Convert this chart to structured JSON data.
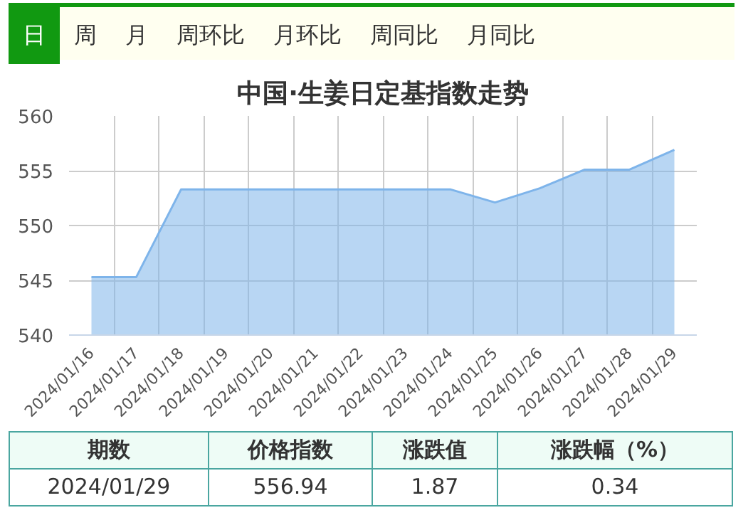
{
  "chart_data": {
    "type": "area",
    "title": "中国·生姜日定基指数走势",
    "categories": [
      "2024/01/16",
      "2024/01/17",
      "2024/01/18",
      "2024/01/19",
      "2024/01/20",
      "2024/01/21",
      "2024/01/22",
      "2024/01/23",
      "2024/01/24",
      "2024/01/25",
      "2024/01/26",
      "2024/01/27",
      "2024/01/28",
      "2024/01/29"
    ],
    "series": [
      {
        "color": "#7eb4ea",
        "values": [
          545.3,
          545.3,
          553.3,
          553.3,
          553.3,
          553.3,
          553.3,
          553.3,
          553.3,
          552.1,
          553.4,
          555.1,
          555.1,
          556.9
        ]
      }
    ],
    "ylim": [
      540,
      560
    ],
    "yticks": [
      540,
      545,
      550,
      555,
      560
    ],
    "grid": true,
    "annotations": [
      "日",
      "周",
      "月",
      "周环比",
      "月环比",
      "周同比",
      "月同比",
      "期数",
      "价格指数",
      "涨跌值",
      "涨跌幅（%）",
      "2024/01/29",
      "556.94",
      "1.87",
      "0.34"
    ]
  }
}
